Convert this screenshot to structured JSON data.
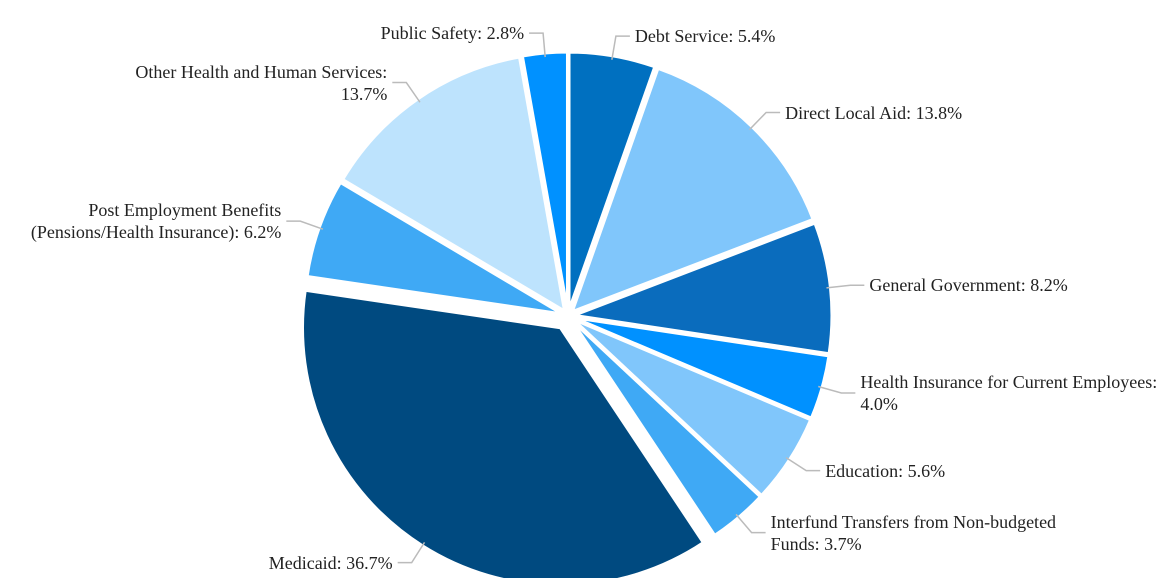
{
  "chart_data": {
    "type": "pie",
    "categories": [
      "Debt Service: 5.4%",
      "Direct Local Aid: 13.8%",
      "General Government: 8.2%",
      "Health Insurance for Current Employees: 4.0%",
      "Education: 5.6%",
      "Interfund Transfers from Non-budgeted Funds: 3.7%",
      "Medicaid: 36.7%",
      "Post Employment Benefits (Pensions/Health Insurance): 6.2%",
      "Other Health and Human Services: 13.7%",
      "Public Safety: 2.8%"
    ],
    "values": [
      5.4,
      13.8,
      8.2,
      4.0,
      5.6,
      3.7,
      36.7,
      6.2,
      13.7,
      2.8
    ],
    "colors": [
      "#0070c0",
      "#80c6fb",
      "#0a6cbd",
      "#0091ff",
      "#80c6fb",
      "#3fa9f5",
      "#004a80",
      "#3fa9f5",
      "#bde3fd",
      "#0091ff"
    ]
  }
}
